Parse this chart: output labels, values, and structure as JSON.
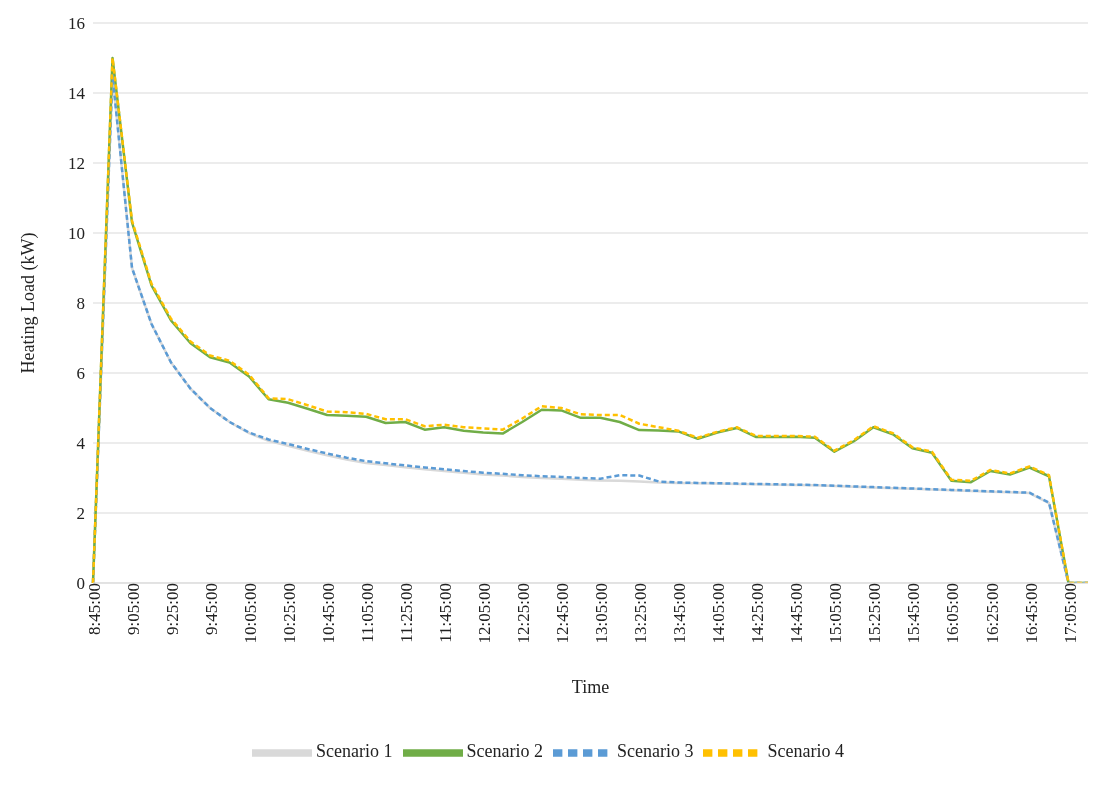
{
  "chart_data": {
    "type": "line",
    "xlabel": "Time",
    "ylabel": "Heating Load (kW)",
    "categories": [
      "8:45:00",
      null,
      "9:05:00",
      null,
      "9:25:00",
      null,
      "9:45:00",
      null,
      "10:05:00",
      null,
      "10:25:00",
      null,
      "10:45:00",
      null,
      "11:05:00",
      null,
      "11:25:00",
      null,
      "11:45:00",
      null,
      "12:05:00",
      null,
      "12:25:00",
      null,
      "12:45:00",
      null,
      "13:05:00",
      null,
      "13:25:00",
      null,
      "13:45:00",
      null,
      "14:05:00",
      null,
      "14:25:00",
      null,
      "14:45:00",
      null,
      "15:05:00",
      null,
      "15:25:00",
      null,
      "15:45:00",
      null,
      "16:05:00",
      null,
      "16:25:00",
      null,
      "16:45:00",
      null,
      "17:05:00",
      null
    ],
    "series": [
      {
        "name": "Scenario 1",
        "color": "#d9d9d9",
        "line_style": "solid",
        "values": [
          0,
          14.5,
          9.0,
          7.4,
          6.3,
          5.55,
          5.0,
          4.6,
          4.28,
          4.06,
          3.92,
          3.78,
          3.65,
          3.53,
          3.43,
          3.37,
          3.31,
          3.25,
          3.2,
          3.15,
          3.1,
          3.07,
          3.03,
          3.0,
          2.98,
          2.95,
          2.93,
          2.92,
          2.9,
          2.87,
          2.86,
          2.85,
          2.84,
          2.83,
          2.82,
          2.81,
          2.8,
          2.79,
          2.77,
          2.75,
          2.73,
          2.71,
          2.69,
          2.67,
          2.65,
          2.63,
          2.61,
          2.59,
          2.57,
          2.28,
          0,
          0
        ]
      },
      {
        "name": "Scenario 2",
        "color": "#70ad47",
        "line_style": "solid",
        "values": [
          0,
          15,
          10.3,
          8.5,
          7.5,
          6.85,
          6.45,
          6.3,
          5.9,
          5.25,
          5.15,
          4.98,
          4.8,
          4.78,
          4.75,
          4.57,
          4.6,
          4.38,
          4.45,
          4.35,
          4.3,
          4.27,
          4.6,
          4.95,
          4.93,
          4.72,
          4.72,
          4.6,
          4.37,
          4.36,
          4.33,
          4.12,
          4.3,
          4.43,
          4.17,
          4.17,
          4.18,
          4.15,
          3.75,
          4.05,
          4.45,
          4.25,
          3.85,
          3.72,
          2.92,
          2.88,
          3.2,
          3.1,
          3.3,
          3.05,
          0,
          0
        ]
      },
      {
        "name": "Scenario 3",
        "color": "#5b9bd5",
        "line_style": "dashed",
        "values": [
          0,
          14.5,
          9.0,
          7.4,
          6.3,
          5.55,
          5.0,
          4.6,
          4.3,
          4.1,
          3.97,
          3.83,
          3.7,
          3.58,
          3.48,
          3.42,
          3.36,
          3.3,
          3.25,
          3.2,
          3.15,
          3.12,
          3.08,
          3.05,
          3.03,
          3.0,
          2.98,
          3.08,
          3.07,
          2.9,
          2.87,
          2.86,
          2.85,
          2.84,
          2.83,
          2.82,
          2.81,
          2.8,
          2.78,
          2.76,
          2.74,
          2.72,
          2.7,
          2.68,
          2.66,
          2.64,
          2.62,
          2.6,
          2.58,
          2.3,
          0,
          0
        ]
      },
      {
        "name": "Scenario 4",
        "color": "#ffc000",
        "line_style": "dashed",
        "values": [
          0,
          15,
          10.35,
          8.55,
          7.55,
          6.9,
          6.5,
          6.35,
          5.95,
          5.28,
          5.25,
          5.08,
          4.9,
          4.88,
          4.83,
          4.68,
          4.68,
          4.48,
          4.52,
          4.45,
          4.42,
          4.38,
          4.7,
          5.05,
          5.0,
          4.82,
          4.8,
          4.8,
          4.55,
          4.45,
          4.35,
          4.15,
          4.32,
          4.45,
          4.2,
          4.2,
          4.2,
          4.18,
          3.78,
          4.08,
          4.48,
          4.28,
          3.88,
          3.75,
          2.95,
          2.92,
          3.23,
          3.13,
          3.33,
          3.08,
          0,
          0
        ]
      }
    ],
    "ylim": [
      0,
      16
    ],
    "yticks": [
      0,
      2,
      4,
      6,
      8,
      10,
      12,
      14,
      16
    ],
    "grid": "y",
    "legend": "bottom",
    "marker": "none"
  }
}
